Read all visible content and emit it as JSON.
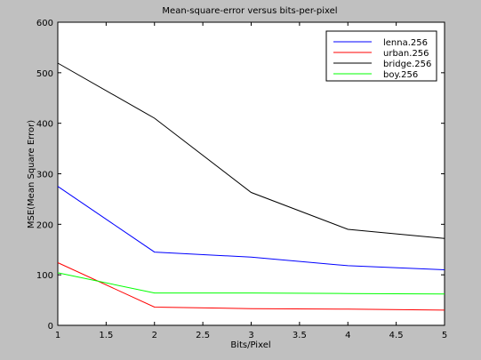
{
  "chart_data": {
    "type": "line",
    "title": "Mean-square-error versus bits-per-pixel",
    "xlabel": "Bits/Pixel",
    "ylabel": "MSE(Mean Square Error)",
    "xlim": [
      1,
      5
    ],
    "ylim": [
      0,
      600
    ],
    "xticks": [
      1,
      1.5,
      2,
      2.5,
      3,
      3.5,
      4,
      4.5,
      5
    ],
    "xtick_labels": [
      "1",
      "1.5",
      "2",
      "2.5",
      "3",
      "3.5",
      "4",
      "4.5",
      "5"
    ],
    "yticks": [
      0,
      100,
      200,
      300,
      400,
      500,
      600
    ],
    "ytick_labels": [
      "0",
      "100",
      "200",
      "300",
      "400",
      "500",
      "600"
    ],
    "grid": false,
    "legend_position": "top-right",
    "x": [
      1,
      2,
      3,
      4,
      5
    ],
    "series": [
      {
        "name": "lenna.256",
        "color": "#0000ff",
        "values": [
          275,
          145,
          135,
          118,
          110
        ]
      },
      {
        "name": "urban.256",
        "color": "#ff0000",
        "values": [
          124,
          36,
          33,
          32,
          30
        ]
      },
      {
        "name": "bridge.256",
        "color": "#000000",
        "values": [
          519,
          410,
          263,
          190,
          172
        ]
      },
      {
        "name": "boy.256",
        "color": "#00ff00",
        "values": [
          104,
          64,
          64,
          63,
          62
        ]
      }
    ]
  }
}
